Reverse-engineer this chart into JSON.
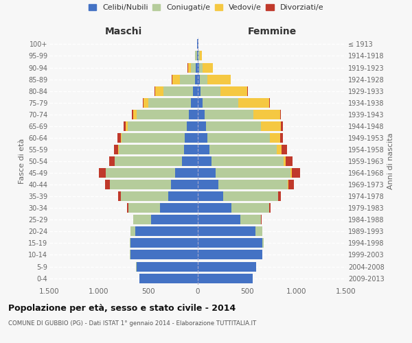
{
  "age_groups": [
    "0-4",
    "5-9",
    "10-14",
    "15-19",
    "20-24",
    "25-29",
    "30-34",
    "35-39",
    "40-44",
    "45-49",
    "50-54",
    "55-59",
    "60-64",
    "65-69",
    "70-74",
    "75-79",
    "80-84",
    "85-89",
    "90-94",
    "95-99",
    "100+"
  ],
  "birth_years": [
    "2009-2013",
    "2004-2008",
    "1999-2003",
    "1994-1998",
    "1989-1993",
    "1984-1988",
    "1979-1983",
    "1974-1978",
    "1969-1973",
    "1964-1968",
    "1959-1963",
    "1954-1958",
    "1949-1953",
    "1944-1948",
    "1939-1943",
    "1934-1938",
    "1929-1933",
    "1924-1928",
    "1919-1923",
    "1914-1918",
    "≤ 1913"
  ],
  "male": {
    "celibi": [
      590,
      620,
      680,
      680,
      630,
      470,
      380,
      300,
      270,
      230,
      160,
      140,
      130,
      110,
      90,
      70,
      50,
      30,
      20,
      10,
      5
    ],
    "coniugati": [
      2,
      2,
      5,
      10,
      50,
      180,
      320,
      480,
      620,
      700,
      680,
      660,
      640,
      600,
      530,
      430,
      300,
      150,
      50,
      15,
      3
    ],
    "vedovi": [
      0,
      0,
      0,
      0,
      1,
      1,
      1,
      1,
      1,
      2,
      3,
      5,
      10,
      20,
      30,
      50,
      80,
      80,
      30,
      5,
      1
    ],
    "divorziati": [
      0,
      0,
      0,
      0,
      2,
      5,
      15,
      25,
      45,
      70,
      55,
      40,
      30,
      20,
      15,
      8,
      5,
      3,
      2,
      0,
      0
    ]
  },
  "female": {
    "nubili": [
      555,
      590,
      650,
      650,
      580,
      430,
      340,
      260,
      210,
      180,
      140,
      120,
      100,
      80,
      70,
      50,
      30,
      20,
      15,
      10,
      5
    ],
    "coniugate": [
      2,
      3,
      5,
      15,
      70,
      210,
      380,
      550,
      700,
      760,
      730,
      680,
      630,
      560,
      490,
      360,
      200,
      80,
      35,
      10,
      2
    ],
    "vedove": [
      0,
      0,
      0,
      0,
      1,
      1,
      2,
      3,
      5,
      10,
      20,
      50,
      100,
      200,
      270,
      310,
      270,
      230,
      100,
      20,
      2
    ],
    "divorziate": [
      0,
      0,
      0,
      0,
      3,
      8,
      15,
      30,
      55,
      85,
      65,
      50,
      30,
      20,
      12,
      8,
      5,
      3,
      2,
      0,
      0
    ]
  },
  "colors": {
    "celibi": "#4472C4",
    "coniugati": "#b5cc9b",
    "vedovi": "#f5c842",
    "divorziati": "#c0392b"
  },
  "legend_labels": [
    "Celibi/Nubili",
    "Coniugati/e",
    "Vedovi/e",
    "Divorziati/e"
  ],
  "title1": "Popolazione per età, sesso e stato civile - 2014",
  "title2": "COMUNE DI GUBBIO (PG) - Dati ISTAT 1° gennaio 2014 - Elaborazione TUTTITALIA.IT",
  "xlabel_left": "Maschi",
  "xlabel_right": "Femmine",
  "ylabel_left": "Fasce di età",
  "ylabel_right": "Anni di nascita",
  "xlim": 1500,
  "xtick_vals": [
    -1500,
    -1000,
    -500,
    0,
    500,
    1000,
    1500
  ],
  "xtick_labels": [
    "1.500",
    "1.000",
    "500",
    "0",
    "500",
    "1.000",
    "1.500"
  ],
  "background_color": "#f7f7f7",
  "grid_color": "#ffffff",
  "label_color": "#666666",
  "title_color": "#111111",
  "subtitle_color": "#555555",
  "maschi_color": "#333333",
  "femmine_color": "#333333"
}
